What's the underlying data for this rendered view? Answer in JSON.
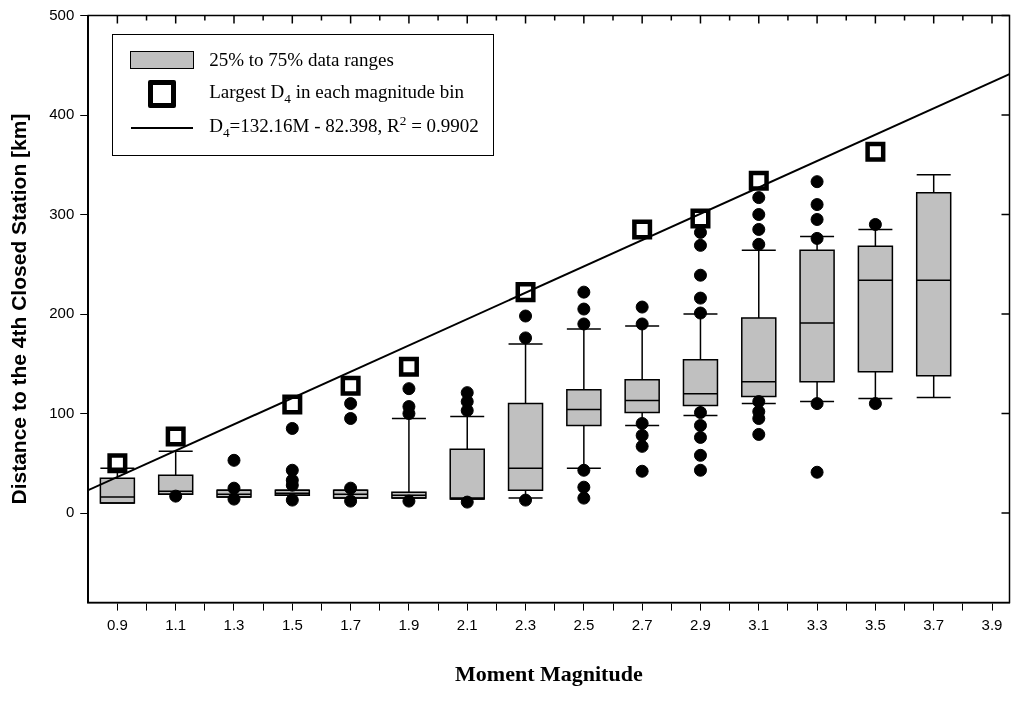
{
  "chart_data": {
    "type": "box",
    "xlabel": "Moment Magnitude",
    "ylabel": "Distance to the 4th Closed Station [km]",
    "legend": "top left",
    "grid": false,
    "x": [
      0.9,
      1.1,
      1.3,
      1.5,
      1.7,
      1.9,
      2.1,
      2.3,
      2.5,
      2.7,
      2.9,
      3.1,
      3.3,
      3.5,
      3.7
    ],
    "xlim": [
      0.8,
      3.96
    ],
    "xticks": [
      0.9,
      {
        "value": 1.0,
        "label": null
      },
      1.1,
      {
        "value": 1.2,
        "label": null
      },
      1.3,
      {
        "value": 1.4,
        "label": null
      },
      1.5,
      {
        "value": 1.6,
        "label": null
      },
      1.7,
      {
        "value": 1.8,
        "label": null
      },
      1.9,
      {
        "value": 2.0,
        "label": null
      },
      2.1,
      {
        "value": 2.2,
        "label": null
      },
      2.3,
      {
        "value": 2.4,
        "label": null
      },
      2.5,
      {
        "value": 2.6,
        "label": null
      },
      2.7,
      {
        "value": 2.8,
        "label": null
      },
      2.9,
      {
        "value": 3.0,
        "label": null
      },
      3.1,
      {
        "value": 3.2,
        "label": null
      },
      3.3,
      {
        "value": 3.4,
        "label": null
      },
      3.5,
      {
        "value": 3.6,
        "label": null
      },
      3.7,
      {
        "value": 3.8,
        "label": null
      },
      3.9
    ],
    "ylim": [
      -90,
      500
    ],
    "yticks": [
      0,
      100,
      200,
      300,
      400,
      500
    ],
    "series": [
      {
        "name": "25% to 75% data ranges",
        "color": "#c0c0c0",
        "boxes": [
          {
            "low": 10,
            "q1": 10,
            "median": 16,
            "q3": 35,
            "high": 45
          },
          {
            "low": 19,
            "q1": 19,
            "median": 22,
            "q3": 38,
            "high": 62,
            "outliers": [
              17
            ]
          },
          {
            "low": 16,
            "q1": 16,
            "median": 19,
            "q3": 23,
            "high": 23,
            "outliers": [
              53,
              25,
              14
            ]
          },
          {
            "low": 18,
            "q1": 18,
            "median": 20,
            "q3": 23,
            "high": 23,
            "outliers": [
              85,
              43,
              33,
              28,
              13
            ]
          },
          {
            "low": 15,
            "q1": 15,
            "median": 19,
            "q3": 23,
            "high": 23,
            "outliers": [
              110,
              95,
              25,
              12
            ]
          },
          {
            "low": 15,
            "q1": 15,
            "median": 18,
            "q3": 21,
            "high": 95,
            "outliers": [
              125,
              107,
              100,
              12
            ]
          },
          {
            "low": 14,
            "q1": 14,
            "median": 15,
            "q3": 64,
            "high": 97,
            "outliers": [
              121,
              112,
              103,
              11
            ]
          },
          {
            "low": 15,
            "q1": 23,
            "median": 45,
            "q3": 110,
            "high": 170,
            "outliers": [
              198,
              176,
              13
            ]
          },
          {
            "low": 45,
            "q1": 88,
            "median": 104,
            "q3": 124,
            "high": 185,
            "outliers": [
              222,
              205,
              190,
              43,
              26,
              15
            ]
          },
          {
            "low": 88,
            "q1": 101,
            "median": 113,
            "q3": 134,
            "high": 188,
            "outliers": [
              207,
              190,
              90,
              78,
              67,
              42
            ]
          },
          {
            "low": 98,
            "q1": 108,
            "median": 120,
            "q3": 154,
            "high": 200,
            "outliers": [
              282,
              269,
              239,
              216,
              201,
              101,
              88,
              76,
              58,
              43
            ]
          },
          {
            "low": 110,
            "q1": 117,
            "median": 132,
            "q3": 196,
            "high": 264,
            "outliers": [
              317,
              300,
              285,
              270,
              112,
              102,
              95,
              79
            ]
          },
          {
            "low": 112,
            "q1": 132,
            "median": 191,
            "q3": 264,
            "high": 278,
            "outliers": [
              333,
              310,
              295,
              276,
              110,
              41
            ]
          },
          {
            "low": 115,
            "q1": 142,
            "median": 234,
            "q3": 268,
            "high": 285,
            "outliers": [
              290,
              110
            ]
          },
          {
            "low": 116,
            "q1": 138,
            "median": 234,
            "q3": 322,
            "high": 340
          }
        ]
      },
      {
        "name": "Largest D$_{4}$ in each magnitude bin",
        "type": "scatter",
        "marker": "square",
        "color": "#000000",
        "x": [
          0.9,
          1.1,
          1.5,
          1.7,
          1.9,
          2.3,
          2.7,
          2.9,
          3.1,
          3.5
        ],
        "values": [
          50,
          77,
          109,
          128,
          147,
          222,
          285,
          296,
          334,
          363
        ]
      },
      {
        "name": "D$_{4}$=132.16M - 82.398, R$^{2}$ = 0.9902",
        "type": "line",
        "color": "#000000",
        "line_style": "solid",
        "x": [
          0.8,
          3.96
        ],
        "values": [
          23,
          441
        ]
      }
    ]
  }
}
